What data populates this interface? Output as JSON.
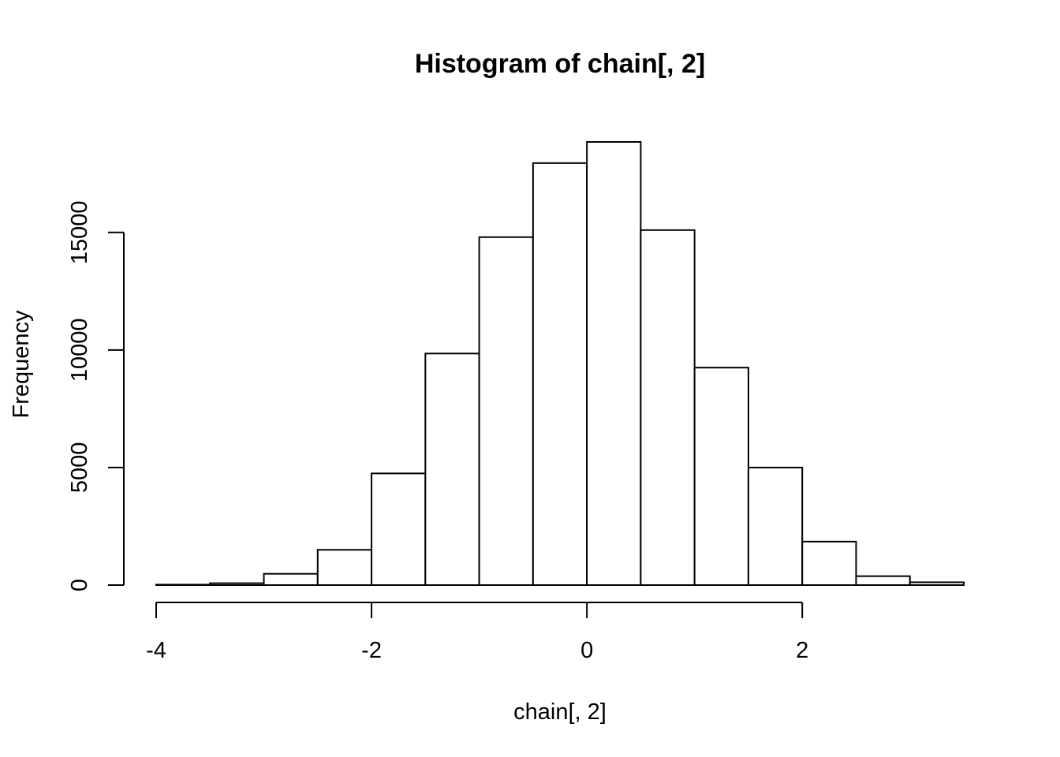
{
  "chart_data": {
    "type": "bar",
    "title": "Histogram of chain[, 2]",
    "xlabel": "chain[, 2]",
    "ylabel": "Frequency",
    "bin_edges": [
      -4.0,
      -3.5,
      -3.0,
      -2.5,
      -2.0,
      -1.5,
      -1.0,
      -0.5,
      0.0,
      0.5,
      1.0,
      1.5,
      2.0,
      2.5,
      3.0,
      3.5
    ],
    "values": [
      20,
      80,
      480,
      1500,
      4750,
      9850,
      14800,
      17950,
      18850,
      15100,
      9250,
      5000,
      1850,
      380,
      120
    ],
    "xlim": [
      -4,
      3.5
    ],
    "ylim": [
      0,
      18850
    ],
    "x_ticks": [
      -4,
      -2,
      0,
      2
    ],
    "x_tick_labels": [
      "-4",
      "-2",
      "0",
      "2"
    ],
    "y_ticks": [
      0,
      5000,
      10000,
      15000
    ],
    "y_tick_labels": [
      "0",
      "5000",
      "10000",
      "15000"
    ],
    "grid": false,
    "legend": "none",
    "bar_fill": "#ffffff",
    "bar_stroke": "#000000"
  }
}
